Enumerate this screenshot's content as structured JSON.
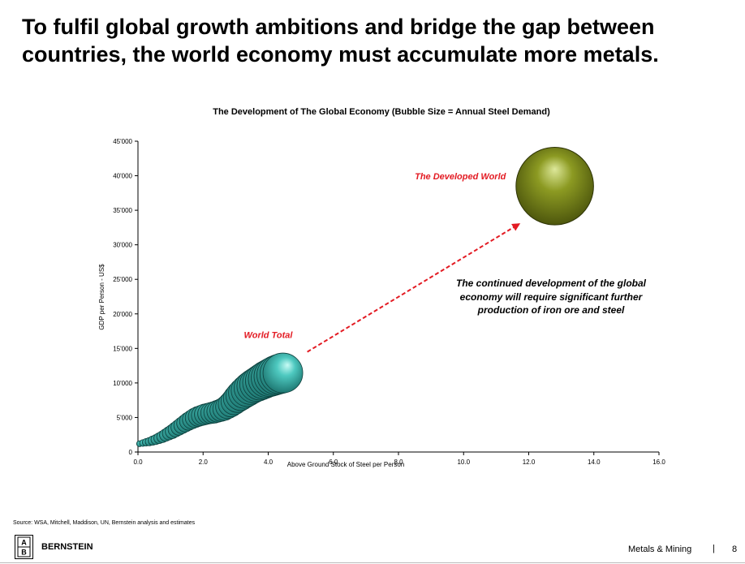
{
  "headline": "To fulfil global growth ambitions and bridge the gap between countries, the world economy must accumulate more metals.",
  "chart_data": {
    "type": "scatter",
    "title": "The Development of The Global Economy (Bubble Size = Annual Steel Demand)",
    "xlabel": "Above Ground Stock of Steel per Person",
    "ylabel": "GDP per Person - US$",
    "xlim": [
      0,
      16
    ],
    "ylim": [
      0,
      45000
    ],
    "x_ticks": [
      "0.0",
      "2.0",
      "4.0",
      "6.0",
      "8.0",
      "10.0",
      "12.0",
      "14.0",
      "16.0"
    ],
    "y_ticks": [
      "0",
      "5'000",
      "10'000",
      "15'000",
      "20'000",
      "25'000",
      "30'000",
      "35'000",
      "40'000",
      "45'000"
    ],
    "series": [
      {
        "name": "World Total",
        "color": "#3fb8b0",
        "points": [
          {
            "x": 0.05,
            "y": 1200,
            "size": 0.15
          },
          {
            "x": 0.15,
            "y": 1300,
            "size": 0.17
          },
          {
            "x": 0.25,
            "y": 1400,
            "size": 0.19
          },
          {
            "x": 0.35,
            "y": 1500,
            "size": 0.21
          },
          {
            "x": 0.45,
            "y": 1650,
            "size": 0.23
          },
          {
            "x": 0.55,
            "y": 1800,
            "size": 0.25
          },
          {
            "x": 0.65,
            "y": 2000,
            "size": 0.27
          },
          {
            "x": 0.75,
            "y": 2200,
            "size": 0.29
          },
          {
            "x": 0.85,
            "y": 2450,
            "size": 0.31
          },
          {
            "x": 0.95,
            "y": 2700,
            "size": 0.33
          },
          {
            "x": 1.05,
            "y": 2950,
            "size": 0.35
          },
          {
            "x": 1.15,
            "y": 3250,
            "size": 0.37
          },
          {
            "x": 1.25,
            "y": 3550,
            "size": 0.39
          },
          {
            "x": 1.35,
            "y": 3850,
            "size": 0.41
          },
          {
            "x": 1.45,
            "y": 4150,
            "size": 0.43
          },
          {
            "x": 1.55,
            "y": 4450,
            "size": 0.45
          },
          {
            "x": 1.65,
            "y": 4700,
            "size": 0.47
          },
          {
            "x": 1.75,
            "y": 4950,
            "size": 0.49
          },
          {
            "x": 1.85,
            "y": 5150,
            "size": 0.5
          },
          {
            "x": 1.95,
            "y": 5300,
            "size": 0.51
          },
          {
            "x": 2.05,
            "y": 5450,
            "size": 0.52
          },
          {
            "x": 2.15,
            "y": 5550,
            "size": 0.52
          },
          {
            "x": 2.25,
            "y": 5650,
            "size": 0.53
          },
          {
            "x": 2.35,
            "y": 5750,
            "size": 0.54
          },
          {
            "x": 2.45,
            "y": 5900,
            "size": 0.55
          },
          {
            "x": 2.55,
            "y": 6050,
            "size": 0.56
          },
          {
            "x": 2.65,
            "y": 6250,
            "size": 0.58
          },
          {
            "x": 2.75,
            "y": 6550,
            "size": 0.6
          },
          {
            "x": 2.85,
            "y": 6900,
            "size": 0.63
          },
          {
            "x": 2.95,
            "y": 7300,
            "size": 0.66
          },
          {
            "x": 3.05,
            "y": 7750,
            "size": 0.7
          },
          {
            "x": 3.15,
            "y": 8150,
            "size": 0.74
          },
          {
            "x": 3.25,
            "y": 8550,
            "size": 0.77
          },
          {
            "x": 3.35,
            "y": 8900,
            "size": 0.8
          },
          {
            "x": 3.45,
            "y": 9250,
            "size": 0.82
          },
          {
            "x": 3.55,
            "y": 9550,
            "size": 0.84
          },
          {
            "x": 3.65,
            "y": 9800,
            "size": 0.86
          },
          {
            "x": 3.75,
            "y": 10050,
            "size": 0.88
          },
          {
            "x": 3.85,
            "y": 10300,
            "size": 0.9
          },
          {
            "x": 3.95,
            "y": 10550,
            "size": 0.92
          },
          {
            "x": 4.05,
            "y": 10750,
            "size": 0.94
          },
          {
            "x": 4.15,
            "y": 10950,
            "size": 0.96
          },
          {
            "x": 4.25,
            "y": 11150,
            "size": 0.98
          },
          {
            "x": 4.35,
            "y": 11300,
            "size": 0.99
          },
          {
            "x": 4.45,
            "y": 11450,
            "size": 1.0
          }
        ]
      },
      {
        "name": "The Developed World",
        "color": "#7d8a1c",
        "points": [
          {
            "x": 12.8,
            "y": 38500,
            "size": 1.95
          }
        ]
      }
    ],
    "annotations": [
      {
        "text": "World Total",
        "x": 4.0,
        "y": 16500,
        "color": "#e31b23"
      },
      {
        "text": "The Developed World",
        "x": 9.9,
        "y": 39500,
        "color": "#e31b23"
      }
    ],
    "arrow": {
      "from": [
        5.2,
        14500
      ],
      "to": [
        11.7,
        33000
      ],
      "color": "#e31b23"
    }
  },
  "annotation_note": "The continued development of the global economy will require significant further production of iron ore and steel",
  "source": "Source: WSA, Mitchell, Maddison, UN, Bernstein analysis and estimates",
  "footer": {
    "logo_top": "A",
    "logo_bottom": "B",
    "brand": "BERNSTEIN",
    "section": "Metals & Mining",
    "separator": "|",
    "page": "8"
  }
}
